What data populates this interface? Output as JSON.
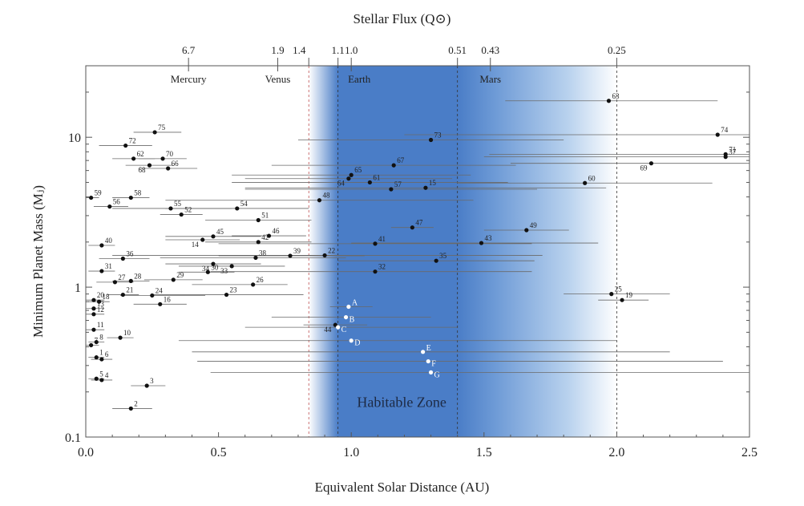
{
  "chart_data": {
    "type": "scatter",
    "title": "Stellar Flux (Q⊙)",
    "xlabel": "Equivalent Solar Distance (AU)",
    "ylabel": "Minimum Planet Mass (Mⱼ)",
    "xlim": [
      0,
      2.5
    ],
    "ylim": [
      0.1,
      30
    ],
    "yscale": "log",
    "x_ticks": [
      "0.0",
      "0.5",
      "1.0",
      "1.5",
      "2.0",
      "2.5"
    ],
    "y_ticks": [
      {
        "value": 0.1,
        "label": "0.1"
      },
      {
        "value": 1,
        "label": "1"
      },
      {
        "value": 10,
        "label": "10"
      }
    ],
    "top_axis_ticks": [
      {
        "label": "6.7",
        "x": 0.387
      },
      {
        "label": "1.9",
        "x": 0.723
      },
      {
        "label": "1.4",
        "x": 0.84
      },
      {
        "label": "1.1",
        "x": 0.95
      },
      {
        "label": "1.0",
        "x": 1.0
      },
      {
        "label": "0.51",
        "x": 1.4
      },
      {
        "label": "0.43",
        "x": 1.524
      },
      {
        "label": "0.25",
        "x": 2.0
      }
    ],
    "solar_planets": [
      {
        "name": "Mercury",
        "x": 0.387
      },
      {
        "name": "Venus",
        "x": 0.723
      },
      {
        "name": "Earth",
        "x": 1.0
      },
      {
        "name": "Mars",
        "x": 1.524
      }
    ],
    "boundary_lines": [
      0.84,
      0.95,
      1.4,
      2.0
    ],
    "habitable_zone": {
      "label": "Habitable Zone",
      "inner": 0.84,
      "core_inner": 0.95,
      "core_outer": 1.4,
      "outer": 2.0
    },
    "points": [
      {
        "label": "2",
        "x": 0.17,
        "y": 0.155,
        "xmin": 0.1,
        "xmax": 0.25,
        "side": "r"
      },
      {
        "label": "3",
        "x": 0.23,
        "y": 0.22,
        "xmin": 0.17,
        "xmax": 0.3,
        "side": "r"
      },
      {
        "label": "4",
        "x": 0.06,
        "y": 0.24,
        "xmin": 0.02,
        "xmax": 0.1,
        "side": "r"
      },
      {
        "label": "5",
        "x": 0.04,
        "y": 0.245,
        "xmin": 0.01,
        "xmax": 0.07,
        "side": "r"
      },
      {
        "label": "6",
        "x": 0.06,
        "y": 0.33,
        "xmin": 0.02,
        "xmax": 0.1,
        "side": "r"
      },
      {
        "label": "1",
        "x": 0.04,
        "y": 0.34,
        "xmin": 0.01,
        "xmax": 0.07,
        "side": "r"
      },
      {
        "label": "7",
        "x": 0.02,
        "y": 0.41,
        "xmin": 0.0,
        "xmax": 0.05,
        "side": "r"
      },
      {
        "label": "8",
        "x": 0.04,
        "y": 0.43,
        "xmin": 0.01,
        "xmax": 0.07,
        "side": "r"
      },
      {
        "label": "10",
        "x": 0.13,
        "y": 0.46,
        "xmin": 0.08,
        "xmax": 0.18,
        "side": "r"
      },
      {
        "label": "11",
        "x": 0.03,
        "y": 0.52,
        "xmin": 0.0,
        "xmax": 0.07,
        "side": "r"
      },
      {
        "label": "12",
        "x": 0.03,
        "y": 0.66,
        "xmin": 0.0,
        "xmax": 0.07,
        "side": "r"
      },
      {
        "label": "13",
        "x": 0.03,
        "y": 0.72,
        "xmin": 0.0,
        "xmax": 0.07,
        "side": "r"
      },
      {
        "label": "18",
        "x": 0.05,
        "y": 0.8,
        "xmin": 0.01,
        "xmax": 0.09,
        "side": "r"
      },
      {
        "label": "20",
        "x": 0.03,
        "y": 0.82,
        "xmin": 0.0,
        "xmax": 0.07,
        "side": "r"
      },
      {
        "label": "21",
        "x": 0.14,
        "y": 0.89,
        "xmin": 0.08,
        "xmax": 0.2,
        "side": "r"
      },
      {
        "label": "16",
        "x": 0.28,
        "y": 0.77,
        "xmin": 0.18,
        "xmax": 0.38,
        "side": "r"
      },
      {
        "label": "24",
        "x": 0.25,
        "y": 0.88,
        "xmin": 0.13,
        "xmax": 0.45,
        "side": "r"
      },
      {
        "label": "23",
        "x": 0.53,
        "y": 0.89,
        "xmin": 0.25,
        "xmax": 0.82,
        "side": "r"
      },
      {
        "label": "26",
        "x": 0.63,
        "y": 1.04,
        "xmin": 0.4,
        "xmax": 0.76,
        "side": "r"
      },
      {
        "label": "27",
        "x": 0.11,
        "y": 1.08,
        "xmin": 0.04,
        "xmax": 0.18,
        "side": "r"
      },
      {
        "label": "28",
        "x": 0.17,
        "y": 1.1,
        "xmin": 0.1,
        "xmax": 0.24,
        "side": "r"
      },
      {
        "label": "29",
        "x": 0.33,
        "y": 1.12,
        "xmin": 0.22,
        "xmax": 0.44,
        "side": "r"
      },
      {
        "label": "30",
        "x": 0.46,
        "y": 1.26,
        "xmin": 0.35,
        "xmax": 0.56,
        "side": "r"
      },
      {
        "label": "31",
        "x": 0.06,
        "y": 1.28,
        "xmin": 0.01,
        "xmax": 0.11,
        "side": "r"
      },
      {
        "label": "33",
        "x": 0.55,
        "y": 1.38,
        "xmin": 0.35,
        "xmax": 0.75,
        "side": "l"
      },
      {
        "label": "34",
        "x": 0.48,
        "y": 1.43,
        "xmin": 0.3,
        "xmax": 0.66,
        "side": "l"
      },
      {
        "label": "32",
        "x": 1.09,
        "y": 1.27,
        "xmin": 0.47,
        "xmax": 1.68,
        "side": "r"
      },
      {
        "label": "36",
        "x": 0.14,
        "y": 1.55,
        "xmin": 0.05,
        "xmax": 0.24,
        "side": "r"
      },
      {
        "label": "38",
        "x": 0.64,
        "y": 1.57,
        "xmin": 0.28,
        "xmax": 0.98,
        "side": "r"
      },
      {
        "label": "39",
        "x": 0.77,
        "y": 1.62,
        "xmin": 0.5,
        "xmax": 1.05,
        "side": "r"
      },
      {
        "label": "22",
        "x": 0.9,
        "y": 1.63,
        "xmin": 0.1,
        "xmax": 1.72,
        "side": "r"
      },
      {
        "label": "35",
        "x": 1.32,
        "y": 1.5,
        "xmin": 0.95,
        "xmax": 1.69,
        "side": "r"
      },
      {
        "label": "40",
        "x": 0.06,
        "y": 1.9,
        "xmin": 0.01,
        "xmax": 0.11,
        "side": "r"
      },
      {
        "label": "14",
        "x": 0.44,
        "y": 2.07,
        "xmin": 0.3,
        "xmax": 0.58,
        "side": "l"
      },
      {
        "label": "45",
        "x": 0.48,
        "y": 2.18,
        "xmin": 0.3,
        "xmax": 0.66,
        "side": "r"
      },
      {
        "label": "42",
        "x": 0.65,
        "y": 2.0,
        "xmin": 0.45,
        "xmax": 0.85,
        "side": "r"
      },
      {
        "label": "46",
        "x": 0.69,
        "y": 2.2,
        "xmin": 0.55,
        "xmax": 0.83,
        "side": "r"
      },
      {
        "label": "41",
        "x": 1.09,
        "y": 1.95,
        "xmin": 0.5,
        "xmax": 1.68,
        "side": "r"
      },
      {
        "label": "43",
        "x": 1.49,
        "y": 1.97,
        "xmin": 1.0,
        "xmax": 1.93,
        "side": "r"
      },
      {
        "label": "47",
        "x": 1.23,
        "y": 2.5,
        "xmin": 1.15,
        "xmax": 1.31,
        "side": "r"
      },
      {
        "label": "49",
        "x": 1.66,
        "y": 2.4,
        "xmin": 1.5,
        "xmax": 1.82,
        "side": "r"
      },
      {
        "label": "51",
        "x": 0.65,
        "y": 2.8,
        "xmin": 0.45,
        "xmax": 0.85,
        "side": "r"
      },
      {
        "label": "52",
        "x": 0.36,
        "y": 3.05,
        "xmin": 0.28,
        "xmax": 0.44,
        "side": "r"
      },
      {
        "label": "55",
        "x": 0.32,
        "y": 3.35,
        "xmin": 0.1,
        "xmax": 0.55,
        "side": "r"
      },
      {
        "label": "54",
        "x": 0.57,
        "y": 3.35,
        "xmin": 0.3,
        "xmax": 0.84,
        "side": "r"
      },
      {
        "label": "56",
        "x": 0.09,
        "y": 3.45,
        "xmin": 0.03,
        "xmax": 0.16,
        "side": "r"
      },
      {
        "label": "48",
        "x": 0.88,
        "y": 3.8,
        "xmin": 0.3,
        "xmax": 1.46,
        "side": "r"
      },
      {
        "label": "58",
        "x": 0.17,
        "y": 3.95,
        "xmin": 0.1,
        "xmax": 0.24,
        "side": "r"
      },
      {
        "label": "59",
        "x": 0.02,
        "y": 3.95,
        "xmin": 0.0,
        "xmax": 0.05,
        "side": "r"
      },
      {
        "label": "57",
        "x": 1.15,
        "y": 4.5,
        "xmin": 0.6,
        "xmax": 1.7,
        "side": "r"
      },
      {
        "label": "15",
        "x": 1.28,
        "y": 4.6,
        "xmin": 0.6,
        "xmax": 1.96,
        "side": "r"
      },
      {
        "label": "60",
        "x": 1.88,
        "y": 4.95,
        "xmin": 1.4,
        "xmax": 2.36,
        "side": "r"
      },
      {
        "label": "64",
        "x": 0.99,
        "y": 5.3,
        "xmin": 0.6,
        "xmax": 1.38,
        "side": "l"
      },
      {
        "label": "61",
        "x": 1.07,
        "y": 5.0,
        "xmin": 0.55,
        "xmax": 1.59,
        "side": "r"
      },
      {
        "label": "65",
        "x": 1.0,
        "y": 5.6,
        "xmin": 0.55,
        "xmax": 1.45,
        "side": "r"
      },
      {
        "label": "66",
        "x": 0.31,
        "y": 6.2,
        "xmin": 0.2,
        "xmax": 0.42,
        "side": "r"
      },
      {
        "label": "68",
        "x": 0.24,
        "y": 6.5,
        "xmin": 0.15,
        "xmax": 0.33,
        "side": "l"
      },
      {
        "label": "67",
        "x": 1.16,
        "y": 6.5,
        "xmin": 0.7,
        "xmax": 1.62,
        "side": "r"
      },
      {
        "label": "69",
        "x": 2.13,
        "y": 6.7,
        "xmin": 1.6,
        "xmax": 2.5,
        "side": "l"
      },
      {
        "label": "62",
        "x": 0.18,
        "y": 7.2,
        "xmin": 0.1,
        "xmax": 0.26,
        "side": "r"
      },
      {
        "label": "70",
        "x": 0.29,
        "y": 7.2,
        "xmin": 0.2,
        "xmax": 0.38,
        "side": "r"
      },
      {
        "label": "37",
        "x": 2.41,
        "y": 7.4,
        "xmin": 1.5,
        "xmax": 2.5,
        "side": "r"
      },
      {
        "label": "71",
        "x": 2.41,
        "y": 7.7,
        "xmin": 1.52,
        "xmax": 2.5,
        "side": "r"
      },
      {
        "label": "72",
        "x": 0.15,
        "y": 8.8,
        "xmin": 0.05,
        "xmax": 0.25,
        "side": "r"
      },
      {
        "label": "73",
        "x": 1.3,
        "y": 9.6,
        "xmin": 0.8,
        "xmax": 1.8,
        "side": "r"
      },
      {
        "label": "74",
        "x": 2.38,
        "y": 10.4,
        "xmin": 1.2,
        "xmax": 2.5,
        "side": "r"
      },
      {
        "label": "75",
        "x": 0.26,
        "y": 10.8,
        "xmin": 0.18,
        "xmax": 0.36,
        "side": "r"
      },
      {
        "label": "63",
        "x": 1.97,
        "y": 17.5,
        "xmin": 1.58,
        "xmax": 2.38,
        "side": "r"
      },
      {
        "label": "25",
        "x": 1.98,
        "y": 0.9,
        "xmin": 1.8,
        "xmax": 2.2,
        "side": "r"
      },
      {
        "label": "19",
        "x": 2.02,
        "y": 0.82,
        "xmin": 1.93,
        "xmax": 2.12,
        "side": "r"
      },
      {
        "label": "44",
        "x": 0.94,
        "y": 0.56,
        "xmin": 0.82,
        "xmax": 1.06,
        "side": "l"
      }
    ],
    "hz_points": [
      {
        "label": "A",
        "x": 0.99,
        "y": 0.74,
        "xmin": 0.92,
        "xmax": 1.08
      },
      {
        "label": "B",
        "x": 0.98,
        "y": 0.63,
        "xmin": 0.7,
        "xmax": 1.3
      },
      {
        "label": "C",
        "x": 0.95,
        "y": 0.54,
        "xmin": 0.6,
        "xmax": 1.4
      },
      {
        "label": "D",
        "x": 1.0,
        "y": 0.44,
        "xmin": 0.35,
        "xmax": 2.0
      },
      {
        "label": "E",
        "x": 1.27,
        "y": 0.37,
        "xmin": 0.4,
        "xmax": 2.2
      },
      {
        "label": "F",
        "x": 1.29,
        "y": 0.32,
        "xmin": 0.42,
        "xmax": 2.4
      },
      {
        "label": "G",
        "x": 1.3,
        "y": 0.27,
        "xmin": 0.47,
        "xmax": 2.5
      }
    ],
    "colors": {
      "hz_core": "#4a7dc7",
      "hz_edge": "#ffffff",
      "axis": "#555555",
      "point": "#111111",
      "hz_point": "#ffffff"
    }
  }
}
